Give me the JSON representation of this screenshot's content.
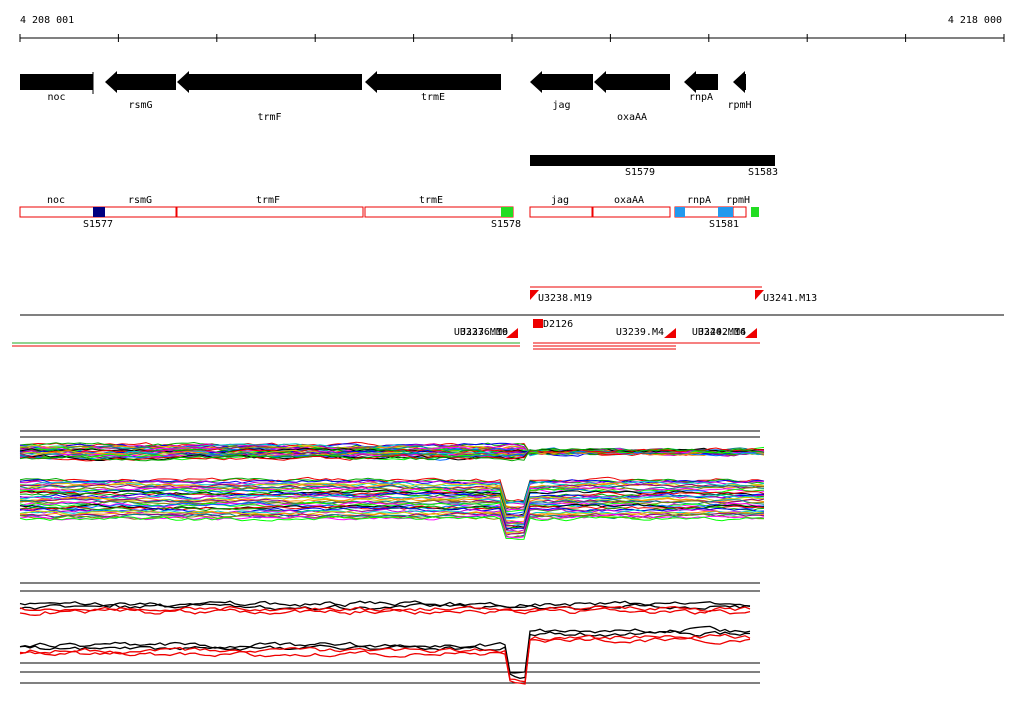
{
  "ruler": {
    "start": "4 208 001",
    "end": "4 218 000"
  },
  "genes": [
    {
      "label": "noc"
    },
    {
      "label": "rsmG"
    },
    {
      "label": "trmF"
    },
    {
      "label": "trmE"
    },
    {
      "label": "jag"
    },
    {
      "label": "oxaAA"
    },
    {
      "label": "rnpA"
    },
    {
      "label": "rpmH"
    }
  ],
  "segments": [
    {
      "label": "S1579"
    },
    {
      "label": "S1583"
    }
  ],
  "annotation_genes": [
    {
      "label": "noc"
    },
    {
      "label": "rsmG"
    },
    {
      "label": "trmF"
    },
    {
      "label": "trmE"
    },
    {
      "label": "jag"
    },
    {
      "label": "oxaAA"
    },
    {
      "label": "rnpA"
    },
    {
      "label": "rpmH"
    }
  ],
  "annotation_segments": [
    {
      "label": "S1577"
    },
    {
      "label": "S1578"
    },
    {
      "label": "S1581"
    }
  ],
  "transcripts": [
    {
      "label": "U3238.M19"
    },
    {
      "label": "U3241.M13"
    },
    {
      "label": "D2126"
    },
    {
      "label": "U3239.M4"
    },
    {
      "label": "U3236.M9"
    },
    {
      "label": "U3237.M16"
    },
    {
      "label": "U3240.M16"
    },
    {
      "label": "U3242.M4"
    }
  ]
}
